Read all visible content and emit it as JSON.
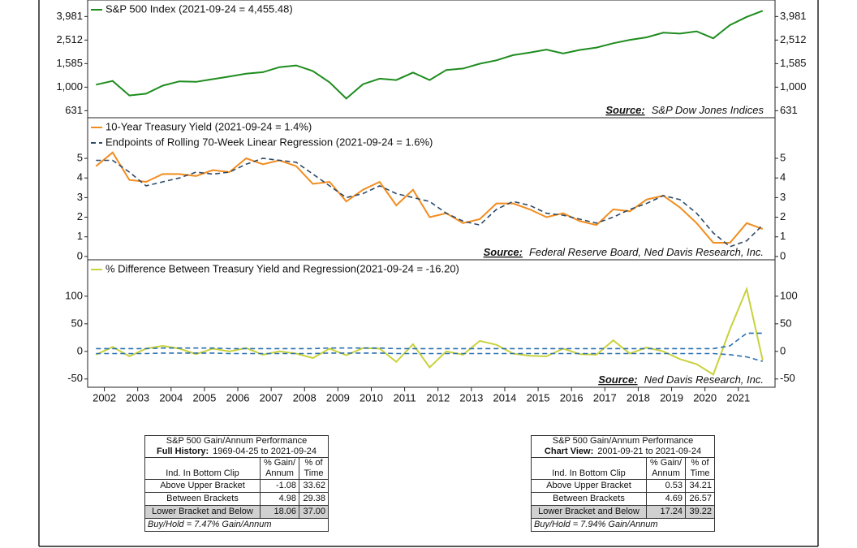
{
  "chart_data": [
    {
      "type": "line",
      "log_scale": true,
      "xlim": [
        2001.5,
        2022.1
      ],
      "ylim": [
        550,
        5500
      ],
      "yticks": [
        631,
        {
          "value": 1000,
          "label": "1,000"
        },
        {
          "value": 1585,
          "label": "1,585"
        },
        {
          "value": 2512,
          "label": "2,512"
        },
        {
          "value": 3981,
          "label": "3,981"
        }
      ],
      "x": [
        2001.75,
        2002.25,
        2002.75,
        2003.25,
        2003.75,
        2004.25,
        2004.75,
        2005.25,
        2005.75,
        2006.25,
        2006.75,
        2007.25,
        2007.75,
        2008.25,
        2008.75,
        2009.25,
        2009.75,
        2010.25,
        2010.75,
        2011.25,
        2011.75,
        2012.25,
        2012.75,
        2013.25,
        2013.75,
        2014.25,
        2014.75,
        2015.25,
        2015.75,
        2016.25,
        2016.75,
        2017.25,
        2017.75,
        2018.25,
        2018.75,
        2019.25,
        2019.75,
        2020.25,
        2020.75,
        2021.25,
        2021.73
      ],
      "series": [
        {
          "name": "S&P 500 Index (2021-09-24 = 4,455.48)",
          "color": "#1e8c1e",
          "dash": false,
          "values": [
            1050,
            1130,
            850,
            880,
            1030,
            1120,
            1110,
            1170,
            1230,
            1300,
            1340,
            1480,
            1530,
            1370,
            1100,
            800,
            1060,
            1180,
            1150,
            1330,
            1150,
            1400,
            1440,
            1580,
            1690,
            1870,
            1970,
            2080,
            1930,
            2070,
            2170,
            2360,
            2520,
            2650,
            2900,
            2850,
            2980,
            2600,
            3370,
            3950,
            4455.48
          ]
        }
      ],
      "source_label": "Source:",
      "source": "S&P Dow Jones Indices"
    },
    {
      "type": "line",
      "log_scale": false,
      "xlim": [
        2001.5,
        2022.1
      ],
      "ylim": [
        -0.17,
        7.07
      ],
      "yticks": [
        0,
        1,
        2,
        3,
        4,
        5
      ],
      "x": [
        2001.75,
        2002.25,
        2002.75,
        2003.25,
        2003.75,
        2004.25,
        2004.75,
        2005.25,
        2005.75,
        2006.25,
        2006.75,
        2007.25,
        2007.75,
        2008.25,
        2008.75,
        2009.25,
        2009.75,
        2010.25,
        2010.75,
        2011.25,
        2011.75,
        2012.25,
        2012.75,
        2013.25,
        2013.75,
        2014.25,
        2014.75,
        2015.25,
        2015.75,
        2016.25,
        2016.75,
        2017.25,
        2017.75,
        2018.25,
        2018.75,
        2019.25,
        2019.75,
        2020.25,
        2020.75,
        2021.25,
        2021.73
      ],
      "series": [
        {
          "name": "10-Year Treasury Yield (2021-09-24 = 1.4%)",
          "color": "#f28c1e",
          "dash": false,
          "values": [
            4.6,
            5.3,
            3.9,
            3.8,
            4.2,
            4.2,
            4.1,
            4.4,
            4.3,
            5.0,
            4.7,
            4.9,
            4.6,
            3.7,
            3.8,
            2.8,
            3.4,
            3.8,
            2.6,
            3.4,
            2.0,
            2.2,
            1.7,
            1.9,
            2.7,
            2.7,
            2.4,
            2.0,
            2.2,
            1.8,
            1.6,
            2.4,
            2.3,
            2.9,
            3.1,
            2.5,
            1.7,
            0.7,
            0.7,
            1.7,
            1.4
          ]
        },
        {
          "name": "Endpoints of Rolling 70-Week Linear Regression (2021-09-24 = 1.6%)",
          "color": "#2f4a66",
          "dash": true,
          "values": [
            4.9,
            4.9,
            4.3,
            3.6,
            3.8,
            4.0,
            4.3,
            4.2,
            4.3,
            4.7,
            5.0,
            4.9,
            4.8,
            4.2,
            3.6,
            3.0,
            3.2,
            3.6,
            3.2,
            3.0,
            2.8,
            2.2,
            1.8,
            1.6,
            2.4,
            2.8,
            2.6,
            2.2,
            2.1,
            1.9,
            1.7,
            2.0,
            2.4,
            2.7,
            3.1,
            2.9,
            2.2,
            1.2,
            0.5,
            0.8,
            1.6
          ]
        }
      ],
      "source_label": "Source:",
      "source": "Federal Reserve Board, Ned Davis Research, Inc."
    },
    {
      "type": "line",
      "log_scale": false,
      "xlim": [
        2001.5,
        2022.1
      ],
      "ylim": [
        -65,
        166
      ],
      "yticks": [
        -50,
        0,
        50,
        100
      ],
      "xticks": [
        2002,
        2003,
        2004,
        2005,
        2006,
        2007,
        2008,
        2009,
        2010,
        2011,
        2012,
        2013,
        2014,
        2015,
        2016,
        2017,
        2018,
        2019,
        2020,
        2021
      ],
      "x": [
        2001.75,
        2002.25,
        2002.75,
        2003.25,
        2003.75,
        2004.25,
        2004.75,
        2005.25,
        2005.75,
        2006.25,
        2006.75,
        2007.25,
        2007.75,
        2008.25,
        2008.75,
        2009.25,
        2009.75,
        2010.25,
        2010.75,
        2011.25,
        2011.75,
        2012.25,
        2012.75,
        2013.25,
        2013.75,
        2014.25,
        2014.75,
        2015.25,
        2015.75,
        2016.25,
        2016.75,
        2017.25,
        2017.75,
        2018.25,
        2018.75,
        2019.25,
        2019.75,
        2020.25,
        2020.75,
        2021.25,
        2021.73
      ],
      "series": [
        {
          "name": "% Difference Between Treasury Yield and Regression(2021-09-24 = -16.20)",
          "color": "#c8d23c",
          "dash": false,
          "values": [
            -6,
            8,
            -9,
            5,
            10,
            5,
            -5,
            5,
            0,
            6,
            -6,
            0,
            -4,
            -12,
            5,
            -7,
            6,
            5,
            -19,
            13,
            -29,
            0,
            -6,
            19,
            12,
            -4,
            -8,
            -9,
            5,
            -5,
            -6,
            20,
            -4,
            7,
            0,
            -14,
            -23,
            -42,
            40,
            113,
            -16.2
          ]
        },
        {
          "color": "#2a6fb0",
          "dash": true,
          "values": [
            5,
            5,
            5,
            5,
            6,
            6,
            6,
            6,
            5,
            5,
            5,
            5,
            5,
            5,
            6,
            6,
            6,
            6,
            5,
            5,
            5,
            5,
            5,
            5,
            5,
            5,
            5,
            5,
            5,
            5,
            5,
            5,
            5,
            5,
            5,
            5,
            5,
            5,
            10,
            33,
            33
          ]
        },
        {
          "color": "#2a6fb0",
          "dash": true,
          "values": [
            -4,
            -4,
            -4,
            -4,
            -3,
            -3,
            -3,
            -3,
            -4,
            -4,
            -4,
            -4,
            -4,
            -4,
            -3,
            -3,
            -3,
            -3,
            -4,
            -4,
            -4,
            -4,
            -4,
            -4,
            -4,
            -4,
            -4,
            -4,
            -4,
            -4,
            -4,
            -4,
            -4,
            -4,
            -4,
            -4,
            -4,
            -4,
            -6,
            -10,
            -18
          ]
        }
      ],
      "source_label": "Source:",
      "source": "Ned Davis Research, Inc."
    }
  ],
  "tables": [
    {
      "title": "S&P 500 Gain/Annum Performance",
      "period_label": "Full History:",
      "period": "1969-04-25 to 2021-09-24",
      "headers": [
        [
          "Ind. In Bottom Clip"
        ],
        [
          "% Gain/",
          "Annum"
        ],
        [
          "% of",
          "Time"
        ]
      ],
      "rows": [
        [
          "Above Upper Bracket",
          "-1.08",
          "33.62"
        ],
        [
          "Between Brackets",
          "4.98",
          "29.38"
        ],
        [
          "Lower Bracket and Below",
          "18.06",
          "37.00"
        ]
      ],
      "footer": "Buy/Hold = 7.47% Gain/Annum"
    },
    {
      "title": "S&P 500 Gain/Annum Performance",
      "period_label": "Chart View:",
      "period": "2001-09-21 to 2021-09-24",
      "headers": [
        [
          "Ind. In Bottom Clip"
        ],
        [
          "% Gain/",
          "Annum"
        ],
        [
          "% of",
          "Time"
        ]
      ],
      "rows": [
        [
          "Above Upper Bracket",
          "0.53",
          "34.21"
        ],
        [
          "Between Brackets",
          "4.69",
          "26.57"
        ],
        [
          "Lower Bracket and Below",
          "17.24",
          "39.22"
        ]
      ],
      "footer": "Buy/Hold = 7.94% Gain/Annum"
    }
  ]
}
